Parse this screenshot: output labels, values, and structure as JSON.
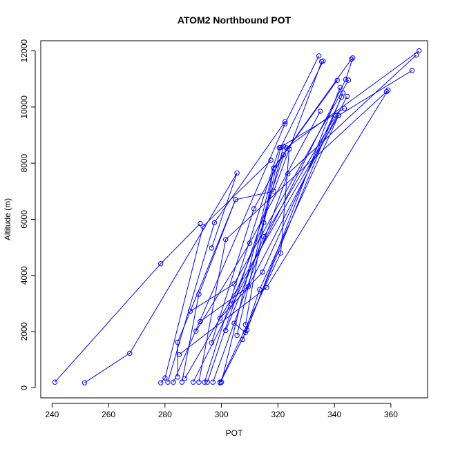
{
  "chart_data": {
    "type": "line",
    "title": "ATOM2 Northbound POT",
    "xlabel": "POT",
    "ylabel": "Altitude (m)",
    "xlim": [
      236,
      373
    ],
    "ylim": [
      -360,
      12360
    ],
    "xticks": [
      240,
      260,
      280,
      300,
      320,
      340,
      360
    ],
    "yticks": [
      0,
      2000,
      4000,
      6000,
      8000,
      10000,
      12000
    ],
    "grid": false,
    "legend": "none",
    "colors": {
      "series": "#0000ff"
    },
    "series": [
      {
        "x": [
          241,
          278.5,
          292.5
        ],
        "y": [
          200,
          4420,
          5850
        ]
      },
      {
        "x": [
          251.5,
          267.5,
          305.5,
          296.5
        ],
        "y": [
          180,
          1230,
          7650,
          4980
        ]
      },
      {
        "x": [
          278.5,
          280,
          293.5,
          317.5
        ],
        "y": [
          180,
          350,
          5750,
          8100
        ]
      },
      {
        "x": [
          281,
          297.5,
          322.5
        ],
        "y": [
          200,
          5880,
          9480
        ]
      },
      {
        "x": [
          283,
          322.5,
          334.5
        ],
        "y": [
          200,
          9400,
          11820
        ]
      },
      {
        "x": [
          284.5,
          284.5,
          305
        ],
        "y": [
          380,
          1620,
          6700
        ]
      },
      {
        "x": [
          286,
          292,
          305,
          318.5,
          335.5
        ],
        "y": [
          200,
          3330,
          6700,
          7000,
          11620
        ]
      },
      {
        "x": [
          287,
          341.5,
          367.5
        ],
        "y": [
          330,
          9700,
          11300
        ]
      },
      {
        "x": [
          290,
          344,
          346.5
        ],
        "y": [
          200,
          10980,
          11750
        ]
      },
      {
        "x": [
          292,
          301.5,
          358.5
        ],
        "y": [
          200,
          5280,
          10550
        ]
      },
      {
        "x": [
          294,
          320.5,
          343.5
        ],
        "y": [
          200,
          8550,
          9950
        ]
      },
      {
        "x": [
          295,
          323,
          370
        ],
        "y": [
          200,
          8550,
          12000
        ]
      },
      {
        "x": [
          297,
          323.5,
          369
        ],
        "y": [
          200,
          7620,
          11850
        ]
      },
      {
        "x": [
          299.5,
          321,
          324
        ],
        "y": [
          200,
          4800,
          8500
        ]
      },
      {
        "x": [
          300,
          318.5,
          341
        ],
        "y": [
          200,
          7820,
          10950
        ]
      },
      {
        "x": [
          291,
          310,
          335
        ],
        "y": [
          2020,
          5150,
          9850
        ]
      },
      {
        "x": [
          285,
          316,
          359
        ],
        "y": [
          1180,
          3570,
          10600
        ]
      },
      {
        "x": [
          289,
          304.5,
          345
        ],
        "y": [
          2730,
          3700,
          10960
        ]
      },
      {
        "x": [
          292.5,
          309.5,
          344.5
        ],
        "y": [
          2360,
          3600,
          10380
        ]
      },
      {
        "x": [
          296.5,
          311.5,
          322
        ],
        "y": [
          1600,
          6380,
          8300
        ]
      },
      {
        "x": [
          299.5,
          314.5,
          342.5
        ],
        "y": [
          2480,
          4120,
          10350
        ]
      },
      {
        "x": [
          301.5,
          315,
          340.5
        ],
        "y": [
          2040,
          5380,
          9700
        ]
      },
      {
        "x": [
          303.5,
          315,
          322
        ],
        "y": [
          2980,
          5880,
          8600
        ]
      },
      {
        "x": [
          304.5,
          308.5,
          343
        ],
        "y": [
          2300,
          1970,
          10500
        ]
      },
      {
        "x": [
          305.5,
          321,
          336
        ],
        "y": [
          1870,
          8560,
          11640
        ]
      },
      {
        "x": [
          307.5,
          313.5,
          341.5
        ],
        "y": [
          1720,
          3500,
          9700
        ]
      },
      {
        "x": [
          308.5,
          318.5,
          346
        ],
        "y": [
          2250,
          7830,
          11700
        ]
      },
      {
        "x": [
          299.5,
          309,
          342
        ],
        "y": [
          180,
          2050,
          10700
        ]
      }
    ]
  }
}
